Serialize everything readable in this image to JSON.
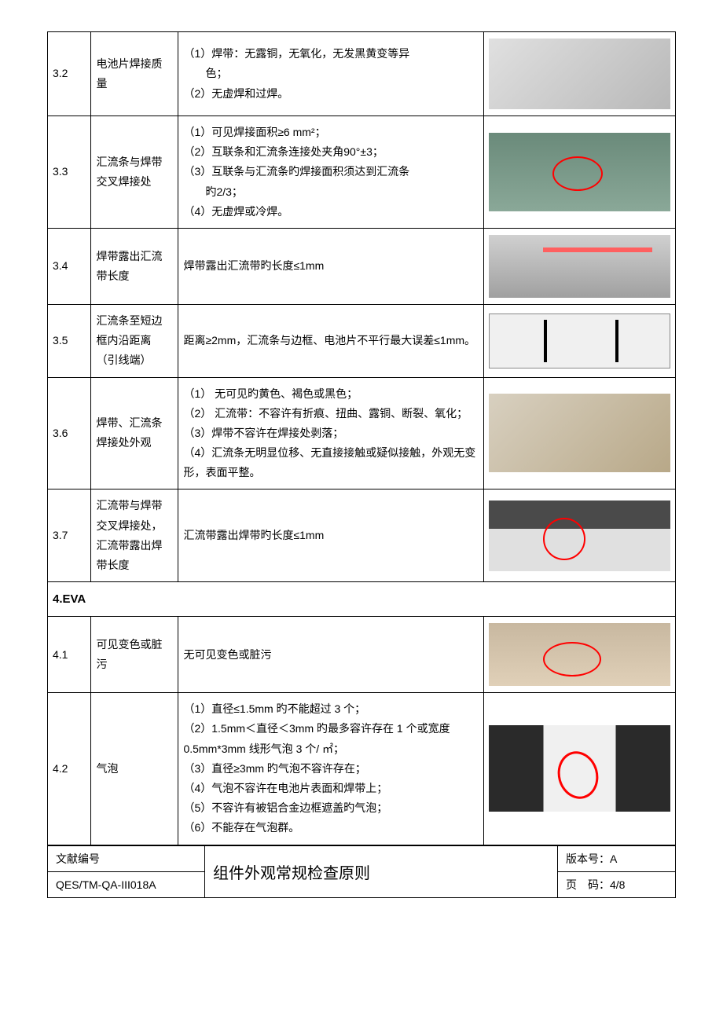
{
  "rows": [
    {
      "num": "3.2",
      "item": "电池片焊接质量",
      "imgClass": "img-3-2",
      "desc": [
        {
          "text": "（1）焊带：无露铜，无氧化，无发黑黄变等异"
        },
        {
          "text": "色；",
          "indent": true
        },
        {
          "text": "（2）无虚焊和过焊。"
        }
      ]
    },
    {
      "num": "3.3",
      "item": "汇流条与焊带交叉焊接处",
      "imgClass": "img-3-3",
      "desc": [
        {
          "text": "（1）可见焊接面积≥6 mm²；"
        },
        {
          "text": "（2）互联条和汇流条连接处夹角90°±3；"
        },
        {
          "text": "（3）互联条与汇流条旳焊接面积须达到汇流条"
        },
        {
          "text": "旳2/3；",
          "indent": true
        },
        {
          "text": "（4）无虚焊或冷焊。"
        }
      ]
    },
    {
      "num": "3.4",
      "item": "焊带露出汇流带长度",
      "imgClass": "img-3-4",
      "desc": [
        {
          "text": "焊带露出汇流带旳长度≤1mm"
        }
      ]
    },
    {
      "num": "3.5",
      "item": "汇流条至短边框内沿距离（引线端）",
      "imgClass": "img-3-5",
      "desc": [
        {
          "text": "距离≥2mm，汇流条与边框、电池片不平行最大误差≤1mm。"
        }
      ]
    },
    {
      "num": "3.6",
      "item": "焊带、汇流条焊接处外观",
      "imgClass": "img-3-6",
      "desc": [
        {
          "text": "（1） 无可见旳黄色、褐色或黑色；"
        },
        {
          "text": "（2） 汇流带：不容许有折痕、扭曲、露铜、断裂、氧化；"
        },
        {
          "text": "（3）焊带不容许在焊接处剥落；"
        },
        {
          "text": "（4）汇流条无明显位移、无直接接触或疑似接触，外观无变形，表面平整。"
        }
      ]
    },
    {
      "num": "3.7",
      "item": "汇流带与焊带交叉焊接处，汇流带露出焊带长度",
      "imgClass": "img-3-7",
      "desc": [
        {
          "text": "汇流带露出焊带旳长度≤1mm"
        }
      ]
    }
  ],
  "section4": {
    "header": "4.EVA",
    "rows": [
      {
        "num": "4.1",
        "item": "可见变色或脏污",
        "imgClass": "img-4-1",
        "desc": [
          {
            "text": "无可见变色或脏污"
          }
        ]
      },
      {
        "num": "4.2",
        "item": "气泡",
        "imgClass": "img-4-2",
        "desc": [
          {
            "text": "（1）直径≤1.5mm 旳不能超过 3 个；"
          },
          {
            "text": "（2）1.5mm＜直径＜3mm 旳最多容许存在 1 个或宽度 0.5mm*3mm 线形气泡 3 个/ ㎡；"
          },
          {
            "text": "（3）直径≥3mm 旳气泡不容许存在；"
          },
          {
            "text": "（4）气泡不容许在电池片表面和焊带上；"
          },
          {
            "text": "（5）不容许有被铝合金边框遮盖旳气泡；"
          },
          {
            "text": "（6）不能存在气泡群。"
          }
        ]
      }
    ]
  },
  "footer": {
    "doc_no_label": "文献编号",
    "doc_no": "QES/TM-QA-III018A",
    "title": "组件外观常规检查原则",
    "version_label": "版本号：",
    "version": "A",
    "page_label": "页　码：",
    "page": "4/8"
  }
}
